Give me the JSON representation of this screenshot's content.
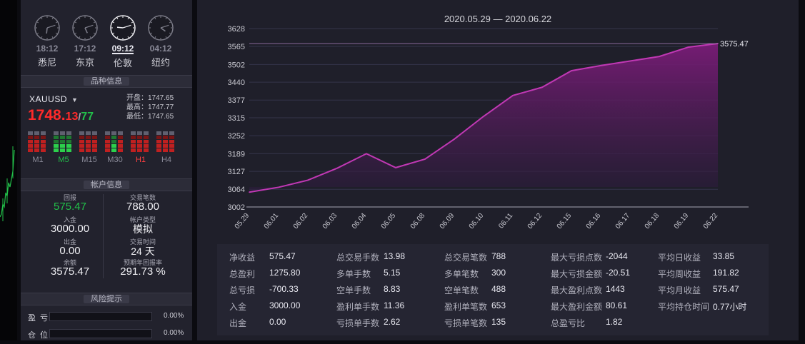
{
  "clocks": [
    {
      "time": "18:12",
      "city": "悉尼",
      "hour": 6,
      "minute": 12,
      "active": false
    },
    {
      "time": "17:12",
      "city": "东京",
      "hour": 5,
      "minute": 12,
      "active": false
    },
    {
      "time": "09:12",
      "city": "伦敦",
      "hour": 9,
      "minute": 12,
      "active": true
    },
    {
      "time": "04:12",
      "city": "纽约",
      "hour": 4,
      "minute": 12,
      "active": false
    }
  ],
  "instrument": {
    "header": "品种信息",
    "symbol": "XAUUSD",
    "price_big": "1748.",
    "price_small": "13",
    "price_slash": "/",
    "price_ask": "77",
    "open_label": "开盘：",
    "open_value": "1747.65",
    "high_label": "最高：",
    "high_value": "1747.77",
    "low_label": "最低：",
    "low_value": "1747.65",
    "timeframes": [
      {
        "label": "M1",
        "tone": "red",
        "green": false
      },
      {
        "label": "M5",
        "tone": "green",
        "green": true
      },
      {
        "label": "M15",
        "tone": "red",
        "green": false
      },
      {
        "label": "M30",
        "tone": "mixed",
        "green": false
      },
      {
        "label": "H1",
        "tone": "red",
        "green": false
      },
      {
        "label": "H4",
        "tone": "red",
        "green": false
      }
    ]
  },
  "account": {
    "header": "帐户信息",
    "drawdown_label": "回报",
    "drawdown_value": "575.47",
    "trades_label": "交易笔数",
    "trades_value": "788.00",
    "deposit_label": "入金",
    "deposit_value": "3000.00",
    "type_label": "帐户类型",
    "type_value": "模拟",
    "withdraw_label": "出金",
    "withdraw_value": "0.00",
    "time_label": "交易时间",
    "time_value": "24 天",
    "balance_label": "余额",
    "balance_value": "3575.47",
    "annual_label": "预期年回报率",
    "annual_value": "291.73 %"
  },
  "risk": {
    "header": "风险提示",
    "rows": [
      {
        "label": "盈亏",
        "value": "0.00%",
        "fill": 0
      },
      {
        "label": "仓位",
        "value": "0.00%",
        "fill": 0
      }
    ]
  },
  "chart_data": {
    "type": "area",
    "title": "2020.05.29 — 2020.06.22",
    "x": [
      "05.29",
      "06.01",
      "06.02",
      "06.03",
      "06.04",
      "06.05",
      "06.08",
      "06.09",
      "06.10",
      "06.11",
      "06.12",
      "06.15",
      "06.16",
      "06.17",
      "06.18",
      "06.19",
      "06.22"
    ],
    "y": [
      3054,
      3071,
      3096,
      3138,
      3189,
      3140,
      3170,
      3240,
      3320,
      3393,
      3422,
      3480,
      3498,
      3514,
      3530,
      3563,
      3575.47
    ],
    "yticks": [
      "3628",
      "3565",
      "3502",
      "3440",
      "3377",
      "3315",
      "3252",
      "3189",
      "3127",
      "3064",
      "3002"
    ],
    "ylim": [
      3002,
      3628
    ],
    "last_label": "3575.47",
    "color": "#b02da0"
  },
  "stats": {
    "col1": [
      {
        "label": "净收益",
        "value": "575.47"
      },
      {
        "label": "总盈利",
        "value": "1275.80"
      },
      {
        "label": "总亏损",
        "value": "-700.33"
      },
      {
        "label": "入金",
        "value": "3000.00"
      },
      {
        "label": "出金",
        "value": "0.00"
      }
    ],
    "col2": [
      {
        "label": "总交易手数",
        "value": "13.98"
      },
      {
        "label": "多单手数",
        "value": "5.15"
      },
      {
        "label": "空单手数",
        "value": "8.83"
      },
      {
        "label": "盈利单手数",
        "value": "11.36"
      },
      {
        "label": "亏损单手数",
        "value": "2.62"
      }
    ],
    "col3": [
      {
        "label": "总交易笔数",
        "value": "788"
      },
      {
        "label": "多单笔数",
        "value": "300"
      },
      {
        "label": "空单笔数",
        "value": "488"
      },
      {
        "label": "盈利单笔数",
        "value": "653"
      },
      {
        "label": "亏损单笔数",
        "value": "135"
      }
    ],
    "col4": [
      {
        "label": "最大亏损点数",
        "value": "-2044"
      },
      {
        "label": "最大亏损金额",
        "value": "-20.51"
      },
      {
        "label": "最大盈利点数",
        "value": "1443"
      },
      {
        "label": "最大盈利金额",
        "value": "80.61"
      },
      {
        "label": "总盈亏比",
        "value": "1.82"
      }
    ],
    "col5": [
      {
        "label": "平均日收益",
        "value": "33.85"
      },
      {
        "label": "平均周收益",
        "value": "191.82"
      },
      {
        "label": "平均月收益",
        "value": "575.47"
      },
      {
        "label": "平均持仓时间",
        "value": "0.77小时"
      }
    ]
  }
}
